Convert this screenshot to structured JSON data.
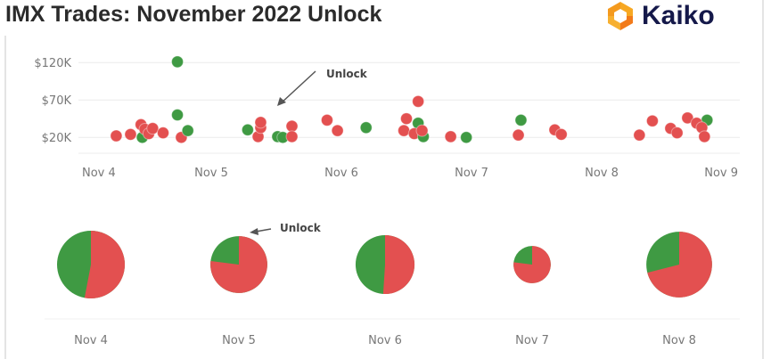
{
  "title": "IMX Trades: November 2022 Unlock",
  "logo": {
    "text": "Kaiko",
    "colors": [
      "#f7a823",
      "#f27a1a"
    ]
  },
  "colors": {
    "buy": "#3f9a43",
    "sell": "#e35050",
    "grid": "#ececec",
    "text": "#777777"
  },
  "chart_data": [
    {
      "type": "scatter",
      "title": "",
      "xlabel": "",
      "ylabel": "",
      "x_ticks": [
        "Nov 4",
        "Nov 5",
        "Nov 6",
        "Nov 7",
        "Nov 8",
        "Nov 9"
      ],
      "x_range_days": [
        4,
        9
      ],
      "y_ticks": [
        "$20K",
        "$70K",
        "$120K"
      ],
      "y_tick_values": [
        20,
        70,
        120
      ],
      "y_unit": "K USD",
      "grid": true,
      "annotation": "Unlock",
      "points": [
        {
          "day": 4.27,
          "value": 22,
          "side": "sell"
        },
        {
          "day": 4.38,
          "value": 24,
          "side": "sell"
        },
        {
          "day": 4.47,
          "value": 20,
          "side": "buy"
        },
        {
          "day": 4.46,
          "value": 37,
          "side": "sell"
        },
        {
          "day": 4.49,
          "value": 31,
          "side": "sell"
        },
        {
          "day": 4.52,
          "value": 25,
          "side": "sell"
        },
        {
          "day": 4.55,
          "value": 32,
          "side": "sell"
        },
        {
          "day": 4.63,
          "value": 26,
          "side": "sell"
        },
        {
          "day": 4.74,
          "value": 121,
          "side": "buy"
        },
        {
          "day": 4.74,
          "value": 50,
          "side": "buy"
        },
        {
          "day": 4.77,
          "value": 20,
          "side": "sell"
        },
        {
          "day": 4.82,
          "value": 29,
          "side": "buy"
        },
        {
          "day": 5.28,
          "value": 30,
          "side": "buy"
        },
        {
          "day": 5.36,
          "value": 21,
          "side": "sell"
        },
        {
          "day": 5.38,
          "value": 33,
          "side": "sell"
        },
        {
          "day": 5.38,
          "value": 40,
          "side": "sell"
        },
        {
          "day": 5.51,
          "value": 21,
          "side": "buy"
        },
        {
          "day": 5.55,
          "value": 20,
          "side": "buy"
        },
        {
          "day": 5.62,
          "value": 35,
          "side": "sell"
        },
        {
          "day": 5.62,
          "value": 21,
          "side": "sell"
        },
        {
          "day": 5.89,
          "value": 43,
          "side": "sell"
        },
        {
          "day": 5.97,
          "value": 29,
          "side": "sell"
        },
        {
          "day": 6.19,
          "value": 33,
          "side": "buy"
        },
        {
          "day": 6.48,
          "value": 29,
          "side": "sell"
        },
        {
          "day": 6.5,
          "value": 45,
          "side": "sell"
        },
        {
          "day": 6.59,
          "value": 39,
          "side": "buy"
        },
        {
          "day": 6.59,
          "value": 68,
          "side": "sell"
        },
        {
          "day": 6.56,
          "value": 25,
          "side": "sell"
        },
        {
          "day": 6.63,
          "value": 21,
          "side": "buy"
        },
        {
          "day": 6.62,
          "value": 29,
          "side": "sell"
        },
        {
          "day": 6.84,
          "value": 21,
          "side": "sell"
        },
        {
          "day": 6.96,
          "value": 20,
          "side": "buy"
        },
        {
          "day": 7.38,
          "value": 43,
          "side": "buy"
        },
        {
          "day": 7.36,
          "value": 23,
          "side": "sell"
        },
        {
          "day": 7.64,
          "value": 30,
          "side": "sell"
        },
        {
          "day": 7.69,
          "value": 24,
          "side": "sell"
        },
        {
          "day": 8.29,
          "value": 23,
          "side": "sell"
        },
        {
          "day": 8.39,
          "value": 42,
          "side": "sell"
        },
        {
          "day": 8.53,
          "value": 32,
          "side": "sell"
        },
        {
          "day": 8.58,
          "value": 26,
          "side": "sell"
        },
        {
          "day": 8.66,
          "value": 46,
          "side": "sell"
        },
        {
          "day": 8.81,
          "value": 43,
          "side": "buy"
        },
        {
          "day": 8.73,
          "value": 39,
          "side": "sell"
        },
        {
          "day": 8.77,
          "value": 33,
          "side": "sell"
        },
        {
          "day": 8.79,
          "value": 21,
          "side": "sell"
        }
      ]
    },
    {
      "type": "pie",
      "annotation": "Unlock",
      "annotation_index": 1,
      "pies": [
        {
          "label": "Nov 4",
          "sell_share": 0.53,
          "buy_share": 0.47,
          "relative_size": 1.0
        },
        {
          "label": "Nov 5",
          "sell_share": 0.77,
          "buy_share": 0.23,
          "relative_size": 0.84
        },
        {
          "label": "Nov 6",
          "sell_share": 0.51,
          "buy_share": 0.49,
          "relative_size": 0.87
        },
        {
          "label": "Nov 7",
          "sell_share": 0.77,
          "buy_share": 0.23,
          "relative_size": 0.55
        },
        {
          "label": "Nov 8",
          "sell_share": 0.71,
          "buy_share": 0.29,
          "relative_size": 0.97
        }
      ]
    }
  ]
}
